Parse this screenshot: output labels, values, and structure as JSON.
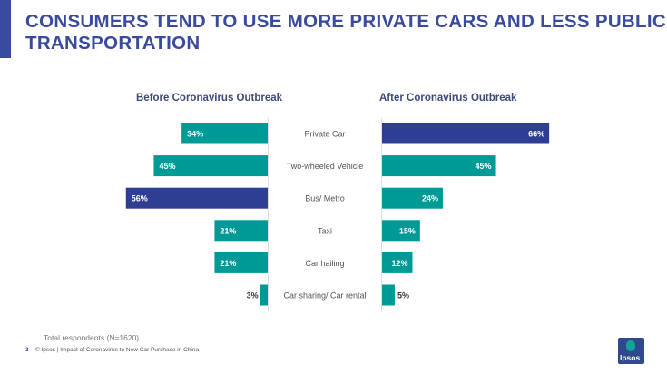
{
  "title": "CONSUMERS TEND TO USE MORE PRIVATE CARS AND LESS PUBLIC TRANSPORTATION",
  "note": "Total respondents (N=1620)",
  "footer": {
    "page": "3",
    "text": "– © Ipsos | Impact of Coronavirus to New Car Purchase in China"
  },
  "logo": "Ipsos",
  "colors": {
    "teal": "#009a96",
    "navy": "#2e3f93",
    "title": "#3a4a9e"
  },
  "chart_data": {
    "type": "bar",
    "orientation": "horizontal-butterfly",
    "categories": [
      "Private Car",
      "Two-wheeled Vehicle",
      "Bus/ Metro",
      "Taxi",
      "Car hailing",
      "Car sharing/ Car rental"
    ],
    "series": [
      {
        "name": "Before Coronavirus Outbreak",
        "values": [
          34,
          45,
          56,
          21,
          21,
          3
        ],
        "highlight_index": 2
      },
      {
        "name": "After Coronavirus Outbreak",
        "values": [
          66,
          45,
          24,
          15,
          12,
          5
        ],
        "highlight_index": 0
      }
    ],
    "unit": "%"
  }
}
